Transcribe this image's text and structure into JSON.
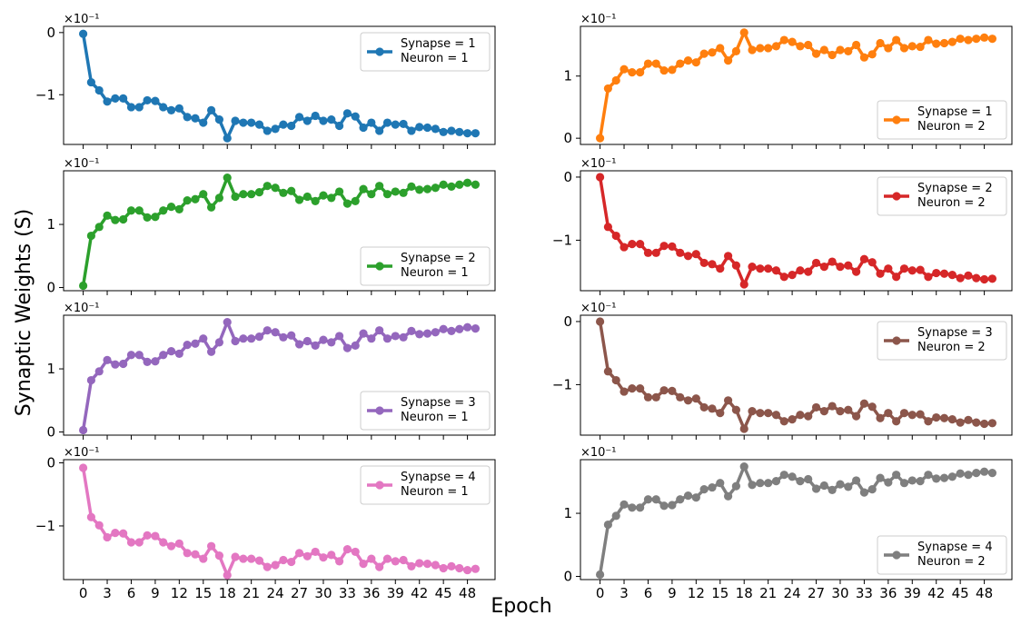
{
  "figure": {
    "ylabel": "Synaptic Weights (S)",
    "xlabel": "Epoch"
  },
  "chart_data": [
    {
      "type": "line",
      "name": "Synapse = 1\nNeuron = 1",
      "color": "#1f77b4",
      "legend_loc": "upper-right",
      "scale_label": "×10⁻¹",
      "ylim": [
        -1.8,
        0.1
      ],
      "yticks": [
        0,
        -1
      ],
      "x_ticks": [
        0,
        3,
        6,
        9,
        12,
        15,
        18,
        21,
        24,
        27,
        30,
        33,
        36,
        39,
        42,
        45,
        48
      ],
      "values": [
        -0.02,
        -0.8,
        -0.93,
        -1.11,
        -1.06,
        -1.06,
        -1.2,
        -1.2,
        -1.09,
        -1.1,
        -1.2,
        -1.25,
        -1.22,
        -1.36,
        -1.38,
        -1.45,
        -1.25,
        -1.4,
        -1.7,
        -1.42,
        -1.45,
        -1.45,
        -1.48,
        -1.58,
        -1.55,
        -1.48,
        -1.5,
        -1.36,
        -1.42,
        -1.34,
        -1.42,
        -1.4,
        -1.5,
        -1.3,
        -1.35,
        -1.53,
        -1.45,
        -1.58,
        -1.45,
        -1.48,
        -1.47,
        -1.58,
        -1.52,
        -1.53,
        -1.55,
        -1.6,
        -1.58,
        -1.6,
        -1.62,
        -1.62
      ]
    },
    {
      "type": "line",
      "name": "Synapse = 1\nNeuron = 2",
      "color": "#ff7f0e",
      "legend_loc": "lower-right",
      "scale_label": "×10⁻¹",
      "ylim": [
        -0.1,
        1.8
      ],
      "yticks": [
        0,
        1
      ],
      "x_ticks": [
        0,
        3,
        6,
        9,
        12,
        15,
        18,
        21,
        24,
        27,
        30,
        33,
        36,
        39,
        42,
        45,
        48
      ],
      "values": [
        0.0,
        0.8,
        0.93,
        1.11,
        1.06,
        1.06,
        1.2,
        1.2,
        1.09,
        1.1,
        1.2,
        1.25,
        1.22,
        1.36,
        1.38,
        1.45,
        1.25,
        1.4,
        1.7,
        1.42,
        1.45,
        1.45,
        1.48,
        1.58,
        1.55,
        1.48,
        1.5,
        1.36,
        1.42,
        1.34,
        1.42,
        1.4,
        1.5,
        1.3,
        1.35,
        1.53,
        1.45,
        1.58,
        1.45,
        1.48,
        1.47,
        1.58,
        1.52,
        1.53,
        1.55,
        1.6,
        1.58,
        1.6,
        1.62,
        1.6
      ]
    },
    {
      "type": "line",
      "name": "Synapse = 2\nNeuron = 1",
      "color": "#2ca02c",
      "legend_loc": "lower-right",
      "scale_label": "×10⁻¹",
      "ylim": [
        -0.05,
        1.85
      ],
      "yticks": [
        0,
        1
      ],
      "x_ticks": [
        0,
        3,
        6,
        9,
        12,
        15,
        18,
        21,
        24,
        27,
        30,
        33,
        36,
        39,
        42,
        45,
        48
      ],
      "values": [
        0.03,
        0.82,
        0.96,
        1.14,
        1.07,
        1.08,
        1.22,
        1.22,
        1.11,
        1.12,
        1.22,
        1.28,
        1.24,
        1.38,
        1.4,
        1.48,
        1.27,
        1.42,
        1.74,
        1.44,
        1.48,
        1.48,
        1.51,
        1.61,
        1.58,
        1.5,
        1.53,
        1.39,
        1.44,
        1.37,
        1.46,
        1.42,
        1.52,
        1.33,
        1.37,
        1.56,
        1.48,
        1.61,
        1.48,
        1.52,
        1.5,
        1.6,
        1.55,
        1.56,
        1.58,
        1.63,
        1.6,
        1.63,
        1.66,
        1.63
      ]
    },
    {
      "type": "line",
      "name": "Synapse = 2\nNeuron = 2",
      "color": "#d62728",
      "legend_loc": "upper-right",
      "scale_label": "×10⁻¹",
      "ylim": [
        -1.8,
        0.1
      ],
      "yticks": [
        0,
        -1
      ],
      "x_ticks": [
        0,
        3,
        6,
        9,
        12,
        15,
        18,
        21,
        24,
        27,
        30,
        33,
        36,
        39,
        42,
        45,
        48
      ],
      "values": [
        0.0,
        -0.79,
        -0.93,
        -1.11,
        -1.06,
        -1.06,
        -1.2,
        -1.2,
        -1.09,
        -1.1,
        -1.2,
        -1.25,
        -1.22,
        -1.36,
        -1.38,
        -1.45,
        -1.25,
        -1.4,
        -1.7,
        -1.42,
        -1.45,
        -1.45,
        -1.48,
        -1.58,
        -1.55,
        -1.48,
        -1.5,
        -1.36,
        -1.42,
        -1.34,
        -1.42,
        -1.4,
        -1.5,
        -1.3,
        -1.35,
        -1.53,
        -1.45,
        -1.58,
        -1.45,
        -1.48,
        -1.47,
        -1.58,
        -1.52,
        -1.53,
        -1.55,
        -1.6,
        -1.56,
        -1.6,
        -1.62,
        -1.61
      ]
    },
    {
      "type": "line",
      "name": "Synapse = 3\nNeuron = 1",
      "color": "#9467bd",
      "legend_loc": "lower-right",
      "scale_label": "×10⁻¹",
      "ylim": [
        -0.05,
        1.85
      ],
      "yticks": [
        0,
        1
      ],
      "x_ticks": [
        0,
        3,
        6,
        9,
        12,
        15,
        18,
        21,
        24,
        27,
        30,
        33,
        36,
        39,
        42,
        45,
        48
      ],
      "values": [
        0.03,
        0.82,
        0.96,
        1.14,
        1.07,
        1.08,
        1.22,
        1.22,
        1.11,
        1.12,
        1.22,
        1.28,
        1.24,
        1.38,
        1.4,
        1.48,
        1.27,
        1.42,
        1.74,
        1.44,
        1.48,
        1.48,
        1.51,
        1.61,
        1.58,
        1.5,
        1.53,
        1.39,
        1.44,
        1.37,
        1.46,
        1.42,
        1.52,
        1.33,
        1.37,
        1.56,
        1.48,
        1.61,
        1.48,
        1.52,
        1.5,
        1.6,
        1.55,
        1.56,
        1.58,
        1.63,
        1.6,
        1.63,
        1.66,
        1.64
      ]
    },
    {
      "type": "line",
      "name": "Synapse = 3\nNeuron = 2",
      "color": "#8c564b",
      "legend_loc": "upper-right",
      "scale_label": "×10⁻¹",
      "ylim": [
        -1.8,
        0.1
      ],
      "yticks": [
        0,
        -1
      ],
      "x_ticks": [
        0,
        3,
        6,
        9,
        12,
        15,
        18,
        21,
        24,
        27,
        30,
        33,
        36,
        39,
        42,
        45,
        48
      ],
      "values": [
        0.0,
        -0.79,
        -0.93,
        -1.11,
        -1.06,
        -1.06,
        -1.2,
        -1.2,
        -1.09,
        -1.1,
        -1.2,
        -1.25,
        -1.22,
        -1.36,
        -1.38,
        -1.45,
        -1.25,
        -1.4,
        -1.7,
        -1.42,
        -1.45,
        -1.45,
        -1.48,
        -1.58,
        -1.55,
        -1.48,
        -1.5,
        -1.36,
        -1.42,
        -1.34,
        -1.42,
        -1.4,
        -1.5,
        -1.3,
        -1.35,
        -1.53,
        -1.45,
        -1.58,
        -1.45,
        -1.48,
        -1.47,
        -1.58,
        -1.52,
        -1.53,
        -1.55,
        -1.6,
        -1.56,
        -1.6,
        -1.62,
        -1.61
      ]
    },
    {
      "type": "line",
      "name": "Synapse = 4\nNeuron = 1",
      "color": "#e377c2",
      "legend_loc": "upper-right",
      "scale_label": "×10⁻¹",
      "ylim": [
        -1.85,
        0.05
      ],
      "yticks": [
        0,
        -1
      ],
      "x_ticks": [
        0,
        3,
        6,
        9,
        12,
        15,
        18,
        21,
        24,
        27,
        30,
        33,
        36,
        39,
        42,
        45,
        48
      ],
      "values": [
        -0.08,
        -0.86,
        -0.99,
        -1.18,
        -1.11,
        -1.12,
        -1.26,
        -1.26,
        -1.15,
        -1.16,
        -1.26,
        -1.32,
        -1.28,
        -1.43,
        -1.45,
        -1.52,
        -1.32,
        -1.47,
        -1.78,
        -1.49,
        -1.52,
        -1.52,
        -1.55,
        -1.65,
        -1.62,
        -1.54,
        -1.57,
        -1.43,
        -1.48,
        -1.41,
        -1.5,
        -1.46,
        -1.56,
        -1.37,
        -1.41,
        -1.6,
        -1.52,
        -1.65,
        -1.52,
        -1.56,
        -1.54,
        -1.64,
        -1.59,
        -1.6,
        -1.62,
        -1.67,
        -1.64,
        -1.67,
        -1.7,
        -1.68
      ]
    },
    {
      "type": "line",
      "name": "Synapse = 4\nNeuron = 2",
      "color": "#7f7f7f",
      "legend_loc": "lower-right",
      "scale_label": "×10⁻¹",
      "ylim": [
        -0.05,
        1.85
      ],
      "yticks": [
        0,
        1
      ],
      "x_ticks": [
        0,
        3,
        6,
        9,
        12,
        15,
        18,
        21,
        24,
        27,
        30,
        33,
        36,
        39,
        42,
        45,
        48
      ],
      "values": [
        0.03,
        0.82,
        0.96,
        1.14,
        1.09,
        1.09,
        1.22,
        1.22,
        1.12,
        1.13,
        1.22,
        1.28,
        1.25,
        1.38,
        1.41,
        1.48,
        1.27,
        1.43,
        1.74,
        1.45,
        1.48,
        1.48,
        1.51,
        1.61,
        1.58,
        1.51,
        1.54,
        1.39,
        1.44,
        1.37,
        1.46,
        1.42,
        1.52,
        1.33,
        1.38,
        1.56,
        1.49,
        1.61,
        1.48,
        1.52,
        1.51,
        1.61,
        1.55,
        1.56,
        1.58,
        1.63,
        1.61,
        1.64,
        1.66,
        1.64
      ]
    }
  ]
}
